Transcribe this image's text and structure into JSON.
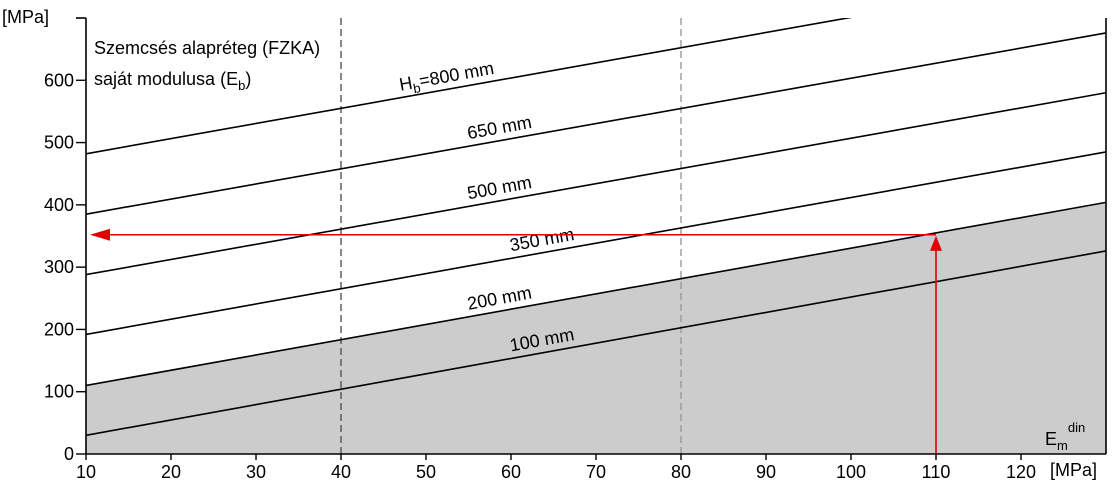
{
  "chart_data": {
    "type": "line",
    "title_lines": [
      "Szemcsés alapréteg (FZKA)",
      "saját modulusa (E",
      "b",
      ")"
    ],
    "y_unit": "[MPa]",
    "x_unit": "[MPa]",
    "x_var": {
      "base": "E",
      "sub": "m",
      "sup": "din"
    },
    "xlim": [
      10,
      130
    ],
    "ylim": [
      0,
      700
    ],
    "x_ticks": [
      10,
      20,
      30,
      40,
      50,
      60,
      70,
      80,
      90,
      100,
      110,
      120
    ],
    "y_ticks": [
      0,
      100,
      200,
      300,
      400,
      500,
      600
    ],
    "dashed_x_lines": [
      40,
      80
    ],
    "shaded_under_series": "200 mm",
    "shade_color": "#cccccc",
    "series": [
      {
        "name": "100 mm",
        "x": [
          10,
          130
        ],
        "y": [
          30,
          326
        ]
      },
      {
        "name": "200 mm",
        "x": [
          10,
          130
        ],
        "y": [
          110,
          404
        ]
      },
      {
        "name": "350 mm",
        "x": [
          10,
          130
        ],
        "y": [
          192,
          485
        ]
      },
      {
        "name": "500 mm",
        "x": [
          10,
          130
        ],
        "y": [
          288,
          580
        ]
      },
      {
        "name": "650 mm",
        "x": [
          10,
          130
        ],
        "y": [
          385,
          676
        ]
      },
      {
        "name": "800 mm",
        "x": [
          10,
          130
        ],
        "y": [
          482,
          774
        ]
      }
    ],
    "series_labels": [
      {
        "text": "100 mm",
        "x": 60
      },
      {
        "text": "200 mm",
        "x": 55
      },
      {
        "text": "350 mm",
        "x": 60
      },
      {
        "text": "500 mm",
        "x": 55
      },
      {
        "text": "650 mm",
        "x": 55
      },
      {
        "text": "H",
        "sub": "b",
        "rest": "=800 mm",
        "x": 47
      }
    ],
    "example": {
      "color": "#e00000",
      "x_value": 110,
      "y_value": 352
    }
  }
}
